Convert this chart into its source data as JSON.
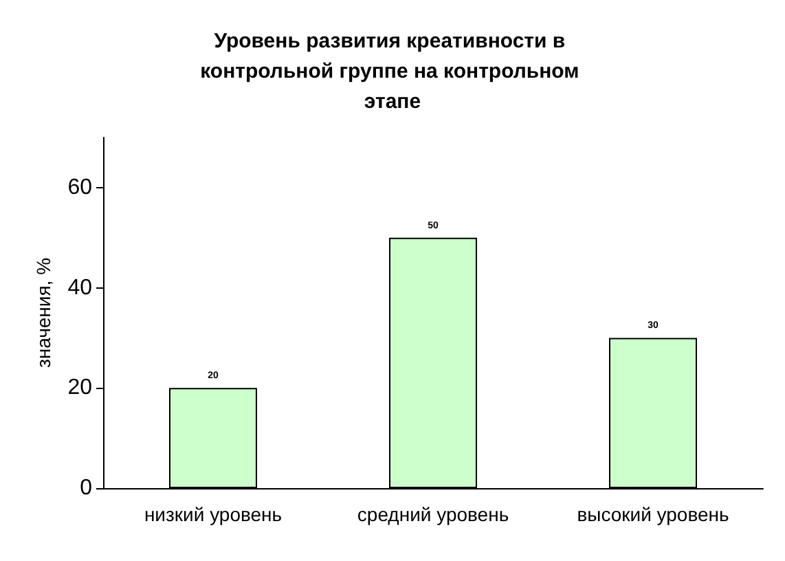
{
  "chart_data": {
    "type": "bar",
    "title": "Уровень развития креативности в контрольной группе на контрольном этапе",
    "ylabel": "значения, %",
    "categories": [
      "низкий уровень",
      "средний уровень",
      "высокий уровень"
    ],
    "values": [
      20,
      50,
      30
    ],
    "color": "#ccffcc",
    "data_labels": true,
    "ylim": [
      0,
      70
    ],
    "yticks": [
      0,
      20,
      40,
      60
    ],
    "grid": false
  }
}
